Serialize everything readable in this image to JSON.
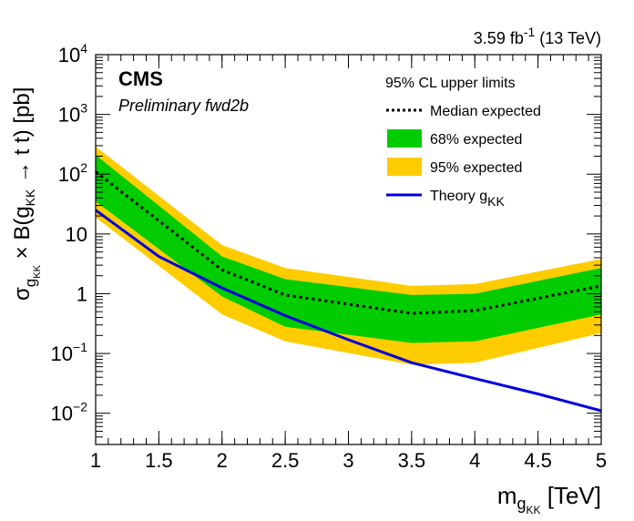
{
  "chart_data": {
    "type": "line",
    "lumi_label": "3.59 fb",
    "lumi_sup": "-1",
    "lumi_energy": " (13 TeV)",
    "experiment": "CMS",
    "subtitle": "Preliminary fwd2b",
    "xlabel_main": "m",
    "xlabel_sub": "g",
    "xlabel_subsub": "KK",
    "xlabel_unit": " [TeV]",
    "ylabel_parts": {
      "sigma": "σ",
      "g": "g",
      "kk": "KK",
      "mid": " × B(g",
      "kk2": "KK",
      "arrow": " → t ",
      "tbar": "t",
      "end": ") [pb]"
    },
    "xlim": [
      1,
      5
    ],
    "ylim": [
      0.003,
      10000
    ],
    "log_y": true,
    "x_ticks": [
      "1",
      "1.5",
      "2",
      "2.5",
      "3",
      "3.5",
      "4",
      "4.5",
      "5"
    ],
    "x_tick_values": [
      1,
      1.5,
      2,
      2.5,
      3,
      3.5,
      4,
      4.5,
      5
    ],
    "y_ticks": [
      {
        "value": 10000,
        "base": "10",
        "exp": "4"
      },
      {
        "value": 1000,
        "base": "10",
        "exp": "3"
      },
      {
        "value": 100,
        "base": "10",
        "exp": "2"
      },
      {
        "value": 10,
        "base": "10",
        "exp": ""
      },
      {
        "value": 1,
        "base": "1",
        "exp": ""
      },
      {
        "value": 0.1,
        "base": "10",
        "exp": "−1"
      },
      {
        "value": 0.01,
        "base": "10",
        "exp": "−2"
      }
    ],
    "legend_title": "95% CL upper limits",
    "legend_placement": "top-right",
    "x": [
      1,
      2,
      2.5,
      3.5,
      4,
      5
    ],
    "band95_low": [
      19,
      0.45,
      0.16,
      0.065,
      0.07,
      0.22
    ],
    "band95_high": [
      290,
      6.5,
      2.7,
      1.35,
      1.45,
      3.8
    ],
    "band68_low": [
      35,
      0.9,
      0.28,
      0.15,
      0.16,
      0.45
    ],
    "band68_high": [
      210,
      4.2,
      1.75,
      0.95,
      1.0,
      2.7
    ],
    "median": [
      110,
      2.5,
      0.95,
      0.47,
      0.52,
      1.35
    ],
    "theory_x": [
      1,
      1.5,
      2,
      2.5,
      3,
      3.5,
      4,
      4.5,
      5
    ],
    "theory": [
      25,
      4.2,
      1.25,
      0.43,
      0.17,
      0.07,
      0.038,
      0.021,
      0.011
    ],
    "series": [
      {
        "name": "Median expected",
        "color": "#000000",
        "style": "dotted"
      },
      {
        "name": "68% expected",
        "color": "#00cc00",
        "style": "fill"
      },
      {
        "name": "95% expected",
        "color": "#ffcc00",
        "style": "fill"
      },
      {
        "name": "Theory g",
        "sub": "KK",
        "color": "#0000dd",
        "style": "line"
      }
    ]
  }
}
